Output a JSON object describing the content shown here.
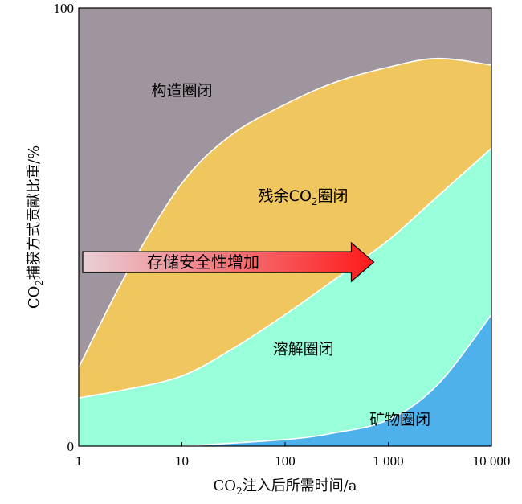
{
  "colors": {
    "structural": "#9f959f",
    "residual": "#f0c65e",
    "solubility": "#99ffdb",
    "mineral": "#4fb1eb",
    "arrow_start": "#e8d0d6",
    "arrow_end": "#ff1a1a",
    "boundary_line": "#ffffff"
  },
  "chart_data": {
    "type": "area",
    "x_scale": "log",
    "xlim": [
      1,
      10000
    ],
    "ylim": [
      0,
      100
    ],
    "xlabel": "CO₂注入后所需时间/a",
    "ylabel": "CO₂捕获方式贡献比重/%",
    "x_ticks": [
      1,
      10,
      100,
      1000,
      10000
    ],
    "x_tick_labels": [
      "1",
      "10",
      "100",
      "1 000",
      "10 000"
    ],
    "y_tick_labels": [
      "0",
      "100"
    ],
    "boundaries": [
      {
        "name": "mineral_upper",
        "x": [
          10,
          100,
          300,
          1000,
          3000,
          10000
        ],
        "y": [
          0,
          1.5,
          3,
          6,
          14,
          30
        ]
      },
      {
        "name": "solubility_upper",
        "x": [
          1,
          3,
          10,
          30,
          100,
          300,
          1000,
          3000,
          10000
        ],
        "y": [
          11,
          13,
          16,
          22,
          30,
          38,
          47,
          57,
          68
        ]
      },
      {
        "name": "residual_upper",
        "x": [
          1,
          3,
          10,
          30,
          100,
          300,
          1000,
          3000,
          10000
        ],
        "y": [
          18,
          40,
          60,
          71,
          78,
          83,
          86.5,
          88.5,
          87
        ]
      }
    ],
    "regions": [
      {
        "name": "构造圈闭",
        "label_x": 10,
        "label_y": 80
      },
      {
        "name": "残余CO₂圈闭",
        "label_x": 150,
        "label_y": 56
      },
      {
        "name": "溶解圈闭",
        "label_x": 150,
        "label_y": 21
      },
      {
        "name": "矿物圈闭",
        "label_x": 1300,
        "label_y": 5
      }
    ],
    "annotation": {
      "text": "存储安全性增加",
      "arrow_from_x": 1,
      "arrow_to_x": 1000,
      "arrow_y": 42
    }
  }
}
